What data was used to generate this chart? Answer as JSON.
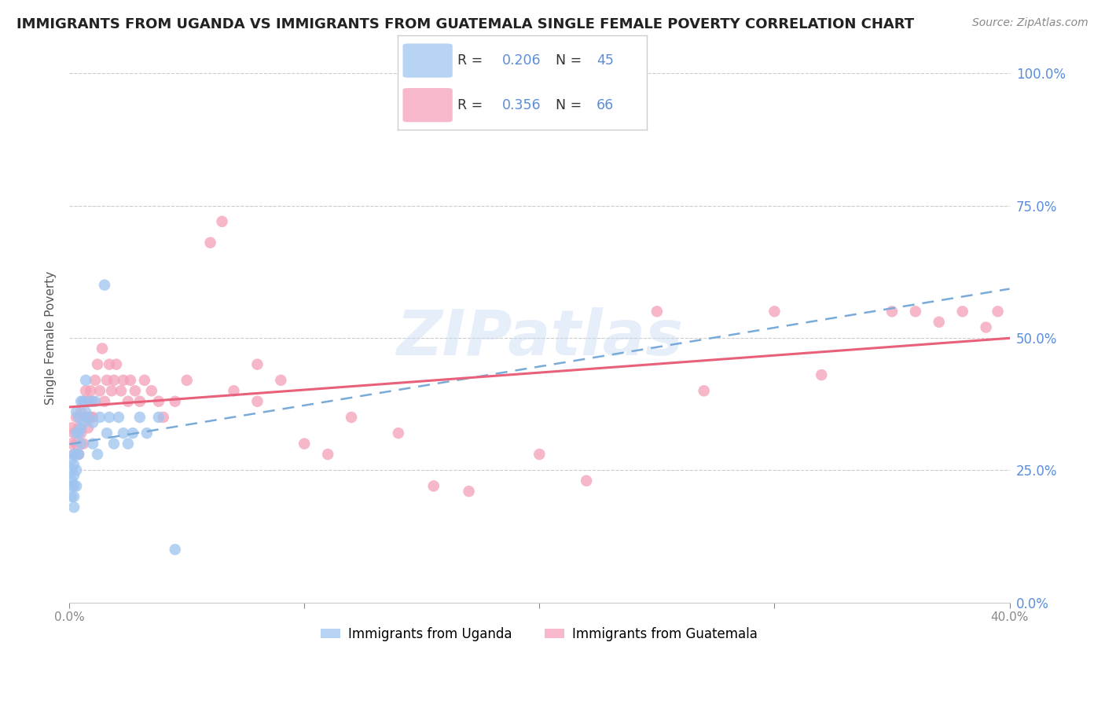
{
  "title": "IMMIGRANTS FROM UGANDA VS IMMIGRANTS FROM GUATEMALA SINGLE FEMALE POVERTY CORRELATION CHART",
  "source": "Source: ZipAtlas.com",
  "ylabel": "Single Female Poverty",
  "xlim": [
    0.0,
    0.4
  ],
  "ylim": [
    0.0,
    1.0
  ],
  "yticks": [
    0.0,
    0.25,
    0.5,
    0.75,
    1.0
  ],
  "xticks": [
    0.0,
    0.1,
    0.2,
    0.3,
    0.4
  ],
  "uganda_color": "#9ec4f0",
  "guatemala_color": "#f4a0b8",
  "uganda_R": 0.206,
  "uganda_N": 45,
  "guatemala_R": 0.356,
  "guatemala_N": 66,
  "trend_uganda_color": "#7aaad8",
  "trend_guatemala_color": "#e8607a",
  "watermark": "ZIPatlas",
  "axis_label_color": "#5b8dd9",
  "background_color": "#ffffff",
  "grid_color": "#cccccc",
  "title_fontsize": 13,
  "legend_uganda_color": "#b8d4f4",
  "legend_guatemala_color": "#f8b8cc",
  "uganda_x": [
    0.001,
    0.001,
    0.001,
    0.001,
    0.001,
    0.002,
    0.002,
    0.002,
    0.002,
    0.002,
    0.002,
    0.003,
    0.003,
    0.003,
    0.003,
    0.003,
    0.004,
    0.004,
    0.004,
    0.005,
    0.005,
    0.005,
    0.006,
    0.006,
    0.007,
    0.007,
    0.008,
    0.009,
    0.01,
    0.01,
    0.011,
    0.012,
    0.013,
    0.015,
    0.016,
    0.017,
    0.019,
    0.021,
    0.023,
    0.025,
    0.027,
    0.03,
    0.033,
    0.038,
    0.045
  ],
  "uganda_y": [
    0.2,
    0.22,
    0.23,
    0.25,
    0.27,
    0.18,
    0.2,
    0.22,
    0.24,
    0.26,
    0.28,
    0.22,
    0.25,
    0.28,
    0.32,
    0.36,
    0.28,
    0.32,
    0.35,
    0.3,
    0.33,
    0.38,
    0.34,
    0.38,
    0.36,
    0.42,
    0.35,
    0.38,
    0.3,
    0.34,
    0.38,
    0.28,
    0.35,
    0.6,
    0.32,
    0.35,
    0.3,
    0.35,
    0.32,
    0.3,
    0.32,
    0.35,
    0.32,
    0.35,
    0.1
  ],
  "guatemala_x": [
    0.001,
    0.001,
    0.002,
    0.002,
    0.003,
    0.003,
    0.004,
    0.004,
    0.005,
    0.005,
    0.006,
    0.006,
    0.007,
    0.007,
    0.008,
    0.008,
    0.009,
    0.009,
    0.01,
    0.01,
    0.011,
    0.012,
    0.013,
    0.014,
    0.015,
    0.016,
    0.017,
    0.018,
    0.019,
    0.02,
    0.022,
    0.023,
    0.025,
    0.026,
    0.028,
    0.03,
    0.032,
    0.035,
    0.038,
    0.04,
    0.045,
    0.05,
    0.06,
    0.065,
    0.07,
    0.08,
    0.09,
    0.1,
    0.11,
    0.12,
    0.14,
    0.155,
    0.17,
    0.2,
    0.22,
    0.25,
    0.27,
    0.3,
    0.32,
    0.35,
    0.36,
    0.37,
    0.38,
    0.39,
    0.395,
    0.08
  ],
  "guatemala_y": [
    0.3,
    0.33,
    0.28,
    0.32,
    0.3,
    0.35,
    0.28,
    0.33,
    0.32,
    0.36,
    0.3,
    0.38,
    0.35,
    0.4,
    0.33,
    0.38,
    0.35,
    0.4,
    0.35,
    0.38,
    0.42,
    0.45,
    0.4,
    0.48,
    0.38,
    0.42,
    0.45,
    0.4,
    0.42,
    0.45,
    0.4,
    0.42,
    0.38,
    0.42,
    0.4,
    0.38,
    0.42,
    0.4,
    0.38,
    0.35,
    0.38,
    0.42,
    0.68,
    0.72,
    0.4,
    0.38,
    0.42,
    0.3,
    0.28,
    0.35,
    0.32,
    0.22,
    0.21,
    0.28,
    0.23,
    0.55,
    0.4,
    0.55,
    0.43,
    0.55,
    0.55,
    0.53,
    0.55,
    0.52,
    0.55,
    0.45
  ]
}
